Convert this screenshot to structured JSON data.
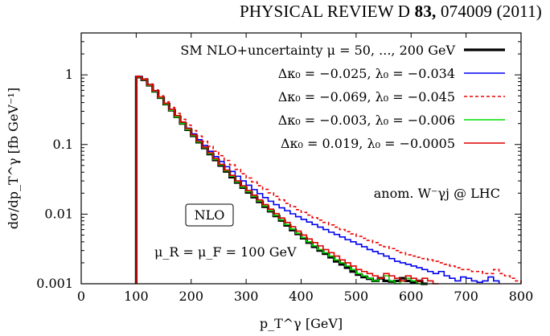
{
  "header": {
    "journal": "PHYSICAL REVIEW D",
    "volume": "83,",
    "article": "074009 (2011)"
  },
  "chart_data": {
    "type": "line",
    "step": true,
    "xlabel": "p_T^γ [GeV]",
    "ylabel": "dσ/dp_T^γ [fb GeV⁻¹]",
    "xlim": [
      0,
      800
    ],
    "ylim": [
      0.001,
      4
    ],
    "yscale": "log",
    "xticks": [
      0,
      100,
      200,
      300,
      400,
      500,
      600,
      700,
      800
    ],
    "xtick_labels": [
      "0",
      "100",
      "200",
      "300",
      "400",
      "500",
      "600",
      "700",
      "800"
    ],
    "yticks": [
      0.001,
      0.01,
      0.1,
      1
    ],
    "ytick_labels": [
      "0.001",
      "0.01",
      "0.1",
      "1"
    ],
    "legend_position": "top-right",
    "annotations": {
      "process": "anom. W⁻γj @ LHC",
      "order": "NLO",
      "scale": "μ_R = μ_F = 100 GeV"
    },
    "colors": {
      "sm": "#000000",
      "blue": "#0000ee",
      "red_dashed": "#ee0000",
      "green": "#00dd00",
      "red": "#dd0000"
    },
    "series": [
      {
        "name": "SM NLO+uncertainty μ = 50, ..., 200 GeV",
        "color": "#000000",
        "style": "band",
        "x": [
          100,
          110,
          120,
          130,
          140,
          150,
          160,
          170,
          180,
          190,
          200,
          210,
          220,
          230,
          240,
          250,
          260,
          270,
          280,
          290,
          300,
          310,
          320,
          330,
          340,
          350,
          360,
          370,
          380,
          390,
          400,
          410,
          420,
          430,
          440,
          450,
          460,
          470,
          480,
          490,
          500,
          510,
          520,
          530,
          540,
          550,
          560,
          570,
          580,
          590,
          600,
          610,
          620
        ],
        "y": [
          0.93,
          0.85,
          0.71,
          0.58,
          0.47,
          0.38,
          0.31,
          0.25,
          0.2,
          0.163,
          0.133,
          0.108,
          0.089,
          0.073,
          0.06,
          0.05,
          0.041,
          0.034,
          0.0285,
          0.024,
          0.0205,
          0.0175,
          0.015,
          0.0128,
          0.011,
          0.0094,
          0.0081,
          0.0069,
          0.0059,
          0.0052,
          0.0045,
          0.0039,
          0.0034,
          0.003,
          0.0027,
          0.0024,
          0.0021,
          0.0019,
          0.0017,
          0.0015,
          0.00135,
          0.00125,
          0.00118,
          0.0011,
          0.0012,
          0.0011,
          0.00108,
          0.0011,
          0.0012,
          0.0011,
          0.00105,
          0.0011,
          0.001
        ]
      },
      {
        "name": "Δκ₀ = −0.025, λ₀ = −0.034",
        "color": "#0000ee",
        "style": "solid",
        "x": [
          100,
          110,
          120,
          130,
          140,
          150,
          160,
          170,
          180,
          190,
          200,
          210,
          220,
          230,
          240,
          250,
          260,
          270,
          280,
          290,
          300,
          310,
          320,
          330,
          340,
          350,
          360,
          370,
          380,
          390,
          400,
          410,
          420,
          430,
          440,
          450,
          460,
          470,
          480,
          490,
          500,
          510,
          520,
          530,
          540,
          550,
          560,
          570,
          580,
          590,
          600,
          610,
          620,
          630,
          640,
          650,
          660,
          670,
          680,
          690,
          700,
          710,
          720,
          730,
          740,
          750
        ],
        "y": [
          0.95,
          0.86,
          0.72,
          0.59,
          0.48,
          0.39,
          0.32,
          0.26,
          0.21,
          0.172,
          0.142,
          0.117,
          0.097,
          0.08,
          0.067,
          0.057,
          0.048,
          0.041,
          0.035,
          0.03,
          0.026,
          0.0225,
          0.0197,
          0.0173,
          0.0153,
          0.0137,
          0.0123,
          0.0112,
          0.0101,
          0.0092,
          0.0084,
          0.0077,
          0.0071,
          0.0065,
          0.006,
          0.0055,
          0.0051,
          0.0047,
          0.0043,
          0.004,
          0.0037,
          0.0034,
          0.0031,
          0.0029,
          0.0027,
          0.0025,
          0.0023,
          0.0021,
          0.002,
          0.0019,
          0.0018,
          0.0017,
          0.0016,
          0.0015,
          0.0014,
          0.0015,
          0.0013,
          0.0012,
          0.0011,
          0.00125,
          0.0012,
          0.0011,
          0.00105,
          0.0011,
          0.00125,
          0.0011
        ]
      },
      {
        "name": "Δκ₀ = −0.069, λ₀ = −0.045",
        "color": "#ee0000",
        "style": "dashed",
        "x": [
          100,
          110,
          120,
          130,
          140,
          150,
          160,
          170,
          180,
          190,
          200,
          210,
          220,
          230,
          240,
          250,
          260,
          270,
          280,
          290,
          300,
          310,
          320,
          330,
          340,
          350,
          360,
          370,
          380,
          390,
          400,
          410,
          420,
          430,
          440,
          450,
          460,
          470,
          480,
          490,
          500,
          510,
          520,
          530,
          540,
          550,
          560,
          570,
          580,
          590,
          600,
          610,
          620,
          630,
          640,
          650,
          660,
          670,
          680,
          690,
          700,
          710,
          720,
          730,
          740,
          750,
          760,
          770,
          780,
          790
        ],
        "y": [
          0.96,
          0.88,
          0.74,
          0.61,
          0.5,
          0.41,
          0.34,
          0.28,
          0.23,
          0.19,
          0.158,
          0.132,
          0.111,
          0.094,
          0.08,
          0.069,
          0.059,
          0.051,
          0.044,
          0.038,
          0.033,
          0.029,
          0.0256,
          0.0227,
          0.0202,
          0.018,
          0.016,
          0.0143,
          0.0128,
          0.0116,
          0.0106,
          0.0097,
          0.0089,
          0.0082,
          0.0076,
          0.007,
          0.0065,
          0.006,
          0.0056,
          0.0052,
          0.0048,
          0.0045,
          0.0042,
          0.0039,
          0.0036,
          0.0034,
          0.0032,
          0.003,
          0.0028,
          0.0026,
          0.0025,
          0.0024,
          0.0023,
          0.0022,
          0.0021,
          0.002,
          0.0019,
          0.0018,
          0.0017,
          0.0016,
          0.0016,
          0.0015,
          0.0015,
          0.0014,
          0.0014,
          0.0016,
          0.0014,
          0.0013,
          0.0012,
          0.0011
        ]
      },
      {
        "name": "Δκ₀ = −0.003, λ₀ = −0.006",
        "color": "#00dd00",
        "style": "solid",
        "x": [
          100,
          110,
          120,
          130,
          140,
          150,
          160,
          170,
          180,
          190,
          200,
          210,
          220,
          230,
          240,
          250,
          260,
          270,
          280,
          290,
          300,
          310,
          320,
          330,
          340,
          350,
          360,
          370,
          380,
          390,
          400,
          410,
          420,
          430,
          440,
          450,
          460,
          470,
          480,
          490,
          500,
          510,
          520,
          530,
          540,
          550,
          560,
          570,
          580,
          590,
          600,
          610,
          620
        ],
        "y": [
          0.93,
          0.85,
          0.71,
          0.58,
          0.47,
          0.38,
          0.31,
          0.25,
          0.2,
          0.164,
          0.134,
          0.109,
          0.09,
          0.074,
          0.061,
          0.051,
          0.042,
          0.035,
          0.029,
          0.0245,
          0.021,
          0.018,
          0.0154,
          0.0131,
          0.0112,
          0.0096,
          0.0083,
          0.0071,
          0.0061,
          0.0053,
          0.0046,
          0.004,
          0.0035,
          0.0031,
          0.0028,
          0.0025,
          0.0022,
          0.002,
          0.0018,
          0.0016,
          0.0014,
          0.0013,
          0.0012,
          0.0011,
          0.0012,
          0.0013,
          0.0011,
          0.001,
          0.0011,
          0.0012,
          0.0011,
          0.001,
          0.001
        ]
      },
      {
        "name": "Δκ₀ = 0.019, λ₀ = −0.0005",
        "color": "#dd0000",
        "style": "solid",
        "x": [
          100,
          110,
          120,
          130,
          140,
          150,
          160,
          170,
          180,
          190,
          200,
          210,
          220,
          230,
          240,
          250,
          260,
          270,
          280,
          290,
          300,
          310,
          320,
          330,
          340,
          350,
          360,
          370,
          380,
          390,
          400,
          410,
          420,
          430,
          440,
          450,
          460,
          470,
          480,
          490,
          500,
          510,
          520,
          530,
          540,
          550,
          560,
          570,
          580,
          590,
          600,
          610,
          620,
          630,
          640
        ],
        "y": [
          0.94,
          0.86,
          0.72,
          0.59,
          0.48,
          0.39,
          0.32,
          0.26,
          0.21,
          0.17,
          0.138,
          0.112,
          0.092,
          0.076,
          0.063,
          0.052,
          0.043,
          0.036,
          0.03,
          0.0255,
          0.0218,
          0.0187,
          0.016,
          0.0137,
          0.0118,
          0.0102,
          0.0088,
          0.0076,
          0.0066,
          0.0057,
          0.005,
          0.0044,
          0.0039,
          0.0035,
          0.0031,
          0.0028,
          0.0025,
          0.0022,
          0.002,
          0.0018,
          0.0016,
          0.0015,
          0.0014,
          0.0013,
          0.0012,
          0.0014,
          0.0013,
          0.0012,
          0.0011,
          0.0013,
          0.0012,
          0.0011,
          0.0012,
          0.0011,
          0.001
        ]
      }
    ]
  }
}
